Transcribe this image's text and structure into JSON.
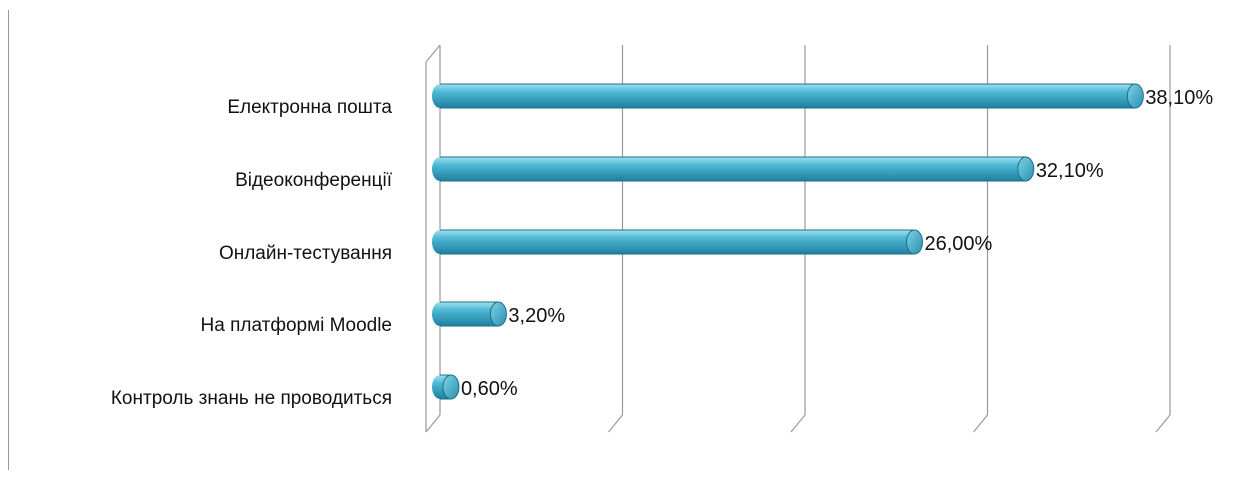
{
  "chart_data": {
    "type": "bar",
    "orientation": "horizontal",
    "categories": [
      "Електронна пошта",
      "Відеоконференції",
      "Онлайн-тестування",
      "На платформі Moodle",
      "Контроль знань не проводиться"
    ],
    "values": [
      38.1,
      32.1,
      26.0,
      3.2,
      0.6
    ],
    "value_labels": [
      "38,10%",
      "32,10%",
      "26,00%",
      "3,20%",
      "0,60%"
    ],
    "xlim": [
      0,
      40
    ],
    "grid": true,
    "legend": "none",
    "bar_color": "#4bb7d3"
  }
}
